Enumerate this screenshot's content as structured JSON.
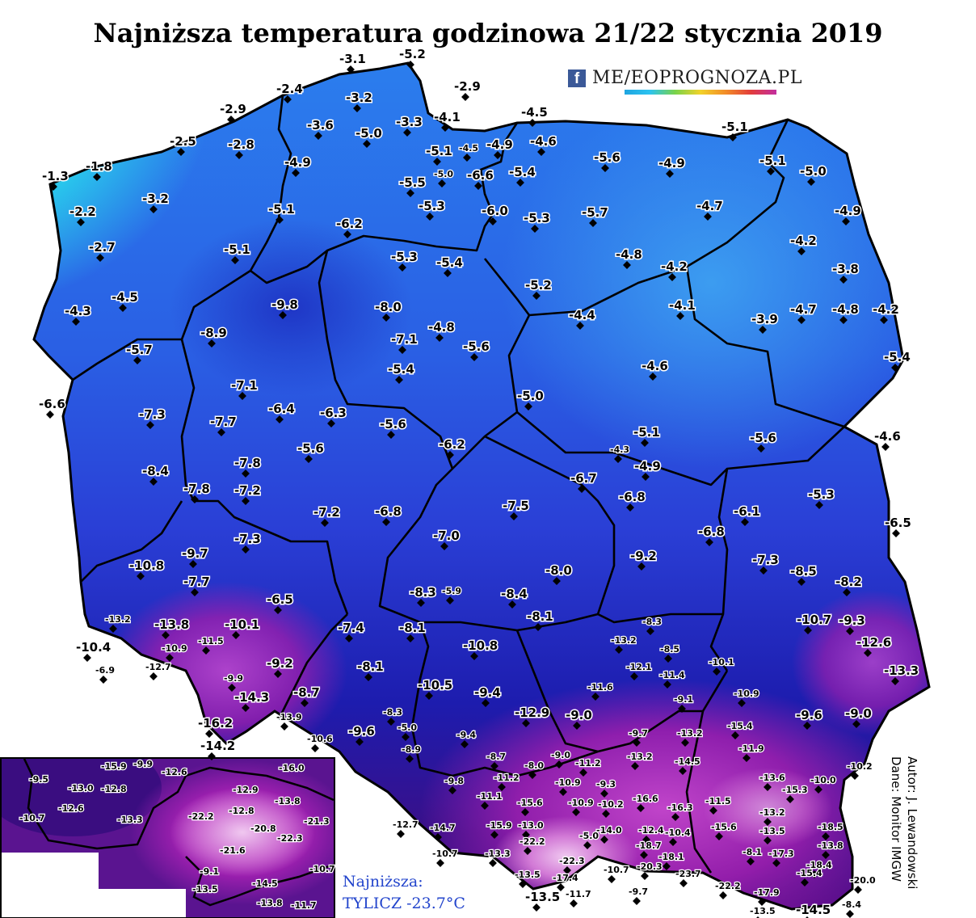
{
  "title": "Najniższa temperatura godzinowa 21/22 stycznia 2019",
  "logo": {
    "icon": "facebook-icon",
    "text": "METEOPROGNOZA.PL",
    "text_display": "ME∕EOPROGNOZA.PL"
  },
  "credits": {
    "author": "Autor: J. Lewandowski",
    "source": "Dane: Monitor IMGW"
  },
  "minimum": {
    "label": "Najniższa:",
    "value": "TYLICZ -23.7°C"
  },
  "colors": {
    "coast_light": "#28e0e0",
    "north_blue": "#1f6be8",
    "central_blue": "#2a3ad8",
    "dark_blue": "#1a1ab0",
    "purple": "#4a0e8a",
    "magenta": "#b020b0",
    "pink": "#d8a0d8"
  },
  "main_labels": [
    [
      "-3.1",
      420,
      78,
      0
    ],
    [
      "-5.2",
      494,
      72,
      0
    ],
    [
      "-2.9",
      562,
      112,
      0
    ],
    [
      "-2.4",
      342,
      115,
      0
    ],
    [
      "-3.2",
      428,
      126,
      0
    ],
    [
      "-2.9",
      272,
      140,
      0
    ],
    [
      "-4.1",
      537,
      150,
      0
    ],
    [
      "-4.5",
      645,
      144,
      0
    ],
    [
      "-3.6",
      380,
      160,
      0
    ],
    [
      "-5.0",
      440,
      170,
      0
    ],
    [
      "-3.3",
      490,
      156,
      0
    ],
    [
      "-5.1",
      893,
      162,
      0
    ],
    [
      "-2.5",
      210,
      180,
      0
    ],
    [
      "-2.8",
      282,
      184,
      0
    ],
    [
      "-4.6",
      656,
      180,
      0
    ],
    [
      "-4.5",
      568,
      187,
      1
    ],
    [
      "-4.9",
      602,
      184,
      0
    ],
    [
      "-5.1",
      527,
      192,
      0
    ],
    [
      "-5.6",
      735,
      200,
      0
    ],
    [
      "-4.9",
      815,
      207,
      0
    ],
    [
      "-5.1",
      940,
      204,
      0
    ],
    [
      "-5.0",
      990,
      217,
      0
    ],
    [
      "-1.3",
      52,
      223,
      0
    ],
    [
      "-1.8",
      106,
      211,
      0
    ],
    [
      "-4.9",
      352,
      206,
      0
    ],
    [
      "-5.0",
      537,
      219,
      1
    ],
    [
      "-6.6",
      578,
      222,
      0
    ],
    [
      "-5.4",
      630,
      218,
      0
    ],
    [
      "-5.5",
      494,
      231,
      0
    ],
    [
      "-3.2",
      176,
      251,
      0
    ],
    [
      "-5.3",
      518,
      260,
      0
    ],
    [
      "-6.0",
      596,
      266,
      0
    ],
    [
      "-5.3",
      648,
      275,
      0
    ],
    [
      "-5.7",
      720,
      268,
      0
    ],
    [
      "-4.7",
      862,
      260,
      0
    ],
    [
      "-4.9",
      1033,
      266,
      0
    ],
    [
      "-2.2",
      86,
      267,
      0
    ],
    [
      "-5.1",
      332,
      264,
      0
    ],
    [
      "-6.2",
      416,
      282,
      0
    ],
    [
      "-4.2",
      978,
      303,
      0
    ],
    [
      "-2.7",
      110,
      311,
      0
    ],
    [
      "-5.1",
      277,
      314,
      0
    ],
    [
      "-5.3",
      484,
      323,
      0
    ],
    [
      "-5.4",
      540,
      330,
      0
    ],
    [
      "-4.8",
      762,
      320,
      0
    ],
    [
      "-4.2",
      818,
      335,
      0
    ],
    [
      "-3.8",
      1030,
      338,
      0
    ],
    [
      "-4.5",
      138,
      373,
      0
    ],
    [
      "-5.2",
      650,
      358,
      0
    ],
    [
      "-9.8",
      336,
      382,
      0
    ],
    [
      "-8.0",
      464,
      385,
      0
    ],
    [
      "-4.1",
      828,
      383,
      0
    ],
    [
      "-3.9",
      930,
      400,
      0
    ],
    [
      "-4.7",
      978,
      388,
      0
    ],
    [
      "-4.8",
      1030,
      388,
      0
    ],
    [
      "-4.2",
      1080,
      388,
      0
    ],
    [
      "-4.3",
      80,
      390,
      0
    ],
    [
      "-4.4",
      704,
      395,
      0
    ],
    [
      "-8.9",
      248,
      417,
      0
    ],
    [
      "-4.8",
      530,
      410,
      0
    ],
    [
      "-7.1",
      484,
      425,
      0
    ],
    [
      "-5.6",
      573,
      434,
      0
    ],
    [
      "-5.7",
      156,
      438,
      0
    ],
    [
      "-5.4",
      1094,
      447,
      0
    ],
    [
      "-4.6",
      794,
      458,
      0
    ],
    [
      "-5.4",
      480,
      462,
      0
    ],
    [
      "-7.1",
      286,
      482,
      0
    ],
    [
      "-5.0",
      640,
      495,
      0
    ],
    [
      "-6.6",
      48,
      505,
      0
    ],
    [
      "-6.4",
      332,
      511,
      0
    ],
    [
      "-6.3",
      396,
      516,
      0
    ],
    [
      "-7.3",
      172,
      518,
      0
    ],
    [
      "-7.7",
      260,
      527,
      0
    ],
    [
      "-5.6",
      470,
      530,
      0
    ],
    [
      "-5.1",
      784,
      540,
      0
    ],
    [
      "-5.6",
      928,
      547,
      0
    ],
    [
      "-4.6",
      1082,
      545,
      0
    ],
    [
      "-6.2",
      543,
      555,
      0
    ],
    [
      "-4.3",
      755,
      560,
      1
    ],
    [
      "-5.6",
      368,
      560,
      0
    ],
    [
      "-7.8",
      290,
      578,
      0
    ],
    [
      "-4.9",
      785,
      582,
      0
    ],
    [
      "-8.4",
      176,
      588,
      0
    ],
    [
      "-6.7",
      706,
      597,
      0
    ],
    [
      "-5.3",
      1000,
      617,
      0
    ],
    [
      "-7.8",
      227,
      610,
      0
    ],
    [
      "-7.2",
      290,
      612,
      0
    ],
    [
      "-6.8",
      766,
      620,
      0
    ],
    [
      "-7.5",
      622,
      631,
      0
    ],
    [
      "-6.1",
      908,
      638,
      0
    ],
    [
      "-7.2",
      388,
      639,
      0
    ],
    [
      "-6.8",
      464,
      638,
      0
    ],
    [
      "-6.5",
      1095,
      652,
      0
    ],
    [
      "-6.8",
      864,
      663,
      0
    ],
    [
      "-7.0",
      536,
      668,
      0
    ],
    [
      "-9.2",
      780,
      693,
      0
    ],
    [
      "-9.7",
      225,
      690,
      0
    ],
    [
      "-7.3",
      290,
      672,
      0
    ],
    [
      "-10.8",
      160,
      705,
      0
    ],
    [
      "-7.3",
      931,
      698,
      0
    ],
    [
      "-8.5",
      978,
      712,
      0
    ],
    [
      "-8.0",
      675,
      711,
      0
    ],
    [
      "-7.7",
      227,
      725,
      0
    ],
    [
      "-8.2",
      1034,
      725,
      0
    ],
    [
      "-8.3",
      507,
      738,
      0
    ],
    [
      "-5.9",
      547,
      735,
      1
    ],
    [
      "-8.4",
      620,
      740,
      0
    ],
    [
      "-6.5",
      330,
      747,
      0
    ],
    [
      "-8.1",
      652,
      768,
      0
    ],
    [
      "-10.7",
      986,
      772,
      0
    ],
    [
      "-9.3",
      1038,
      773,
      0
    ],
    [
      "-13.2",
      130,
      770,
      1
    ],
    [
      "-13.8",
      191,
      778,
      0
    ],
    [
      "-10.1",
      278,
      778,
      0
    ],
    [
      "-7.4",
      418,
      782,
      0
    ],
    [
      "-8.1",
      494,
      782,
      0
    ],
    [
      "-8.3",
      795,
      773,
      1
    ],
    [
      "-10.4",
      94,
      806,
      0
    ],
    [
      "-11.5",
      245,
      797,
      1
    ],
    [
      "-13.2",
      756,
      796,
      1
    ],
    [
      "-8.5",
      817,
      807,
      1
    ],
    [
      "-12.6",
      1060,
      800,
      0
    ],
    [
      "-10.8",
      573,
      804,
      0
    ],
    [
      "-10.9",
      200,
      806,
      1
    ],
    [
      "-12.7",
      180,
      829,
      1
    ],
    [
      "-6.9",
      118,
      833,
      1
    ],
    [
      "-9.2",
      330,
      826,
      0
    ],
    [
      "-8.1",
      442,
      830,
      0
    ],
    [
      "-12.1",
      775,
      829,
      1
    ],
    [
      "-11.4",
      816,
      839,
      1
    ],
    [
      "-10.1",
      877,
      823,
      1
    ],
    [
      "-13.3",
      1094,
      835,
      0
    ],
    [
      "-9.9",
      277,
      843,
      1
    ],
    [
      "-10.5",
      517,
      853,
      0
    ],
    [
      "-11.6",
      727,
      854,
      1
    ],
    [
      "-9.4",
      587,
      862,
      0
    ],
    [
      "-10.9",
      908,
      862,
      1
    ],
    [
      "-14.3",
      290,
      868,
      0
    ],
    [
      "-8.7",
      363,
      862,
      0
    ],
    [
      "-9.1",
      834,
      869,
      1
    ],
    [
      "-12.9",
      637,
      887,
      0
    ],
    [
      "-9.0",
      700,
      890,
      0
    ],
    [
      "-9.6",
      985,
      890,
      0
    ],
    [
      "-9.0",
      1046,
      888,
      0
    ],
    [
      "-8.3",
      474,
      885,
      1
    ],
    [
      "-13.9",
      342,
      891,
      1
    ],
    [
      "-16.2",
      245,
      900,
      0
    ],
    [
      "-15.4",
      900,
      902,
      1
    ],
    [
      "-13.2",
      838,
      911,
      1
    ],
    [
      "-9.7",
      778,
      911,
      1
    ],
    [
      "-5.0",
      492,
      904,
      1
    ],
    [
      "-9.6",
      431,
      910,
      0
    ],
    [
      "-9.4",
      565,
      913,
      1
    ],
    [
      "-10.6",
      380,
      918,
      1
    ],
    [
      "-11.9",
      914,
      930,
      1
    ],
    [
      "-14.2",
      248,
      928,
      0
    ],
    [
      "-8.9",
      497,
      931,
      1
    ],
    [
      "-9.0",
      682,
      938,
      1
    ],
    [
      "-13.2",
      776,
      940,
      1
    ],
    [
      "-14.5",
      835,
      946,
      1
    ],
    [
      "-8.7",
      602,
      940,
      1
    ],
    [
      "-8.0",
      649,
      951,
      1
    ],
    [
      "-11.2",
      712,
      948,
      1
    ],
    [
      "-10.2",
      1048,
      952,
      1
    ],
    [
      "-13.6",
      940,
      966,
      1
    ],
    [
      "-10.0",
      1003,
      969,
      1
    ],
    [
      "-11.2",
      611,
      966,
      1
    ],
    [
      "-10.9",
      687,
      972,
      1
    ],
    [
      "-9.3",
      738,
      974,
      1
    ],
    [
      "-9.8",
      550,
      970,
      1
    ],
    [
      "-15.3",
      968,
      981,
      1
    ],
    [
      "-11.1",
      590,
      989,
      1
    ],
    [
      "-16.6",
      783,
      992,
      1
    ],
    [
      "-11.5",
      873,
      995,
      1
    ],
    [
      "-13.2",
      940,
      1009,
      1
    ],
    [
      "-15.6",
      640,
      997,
      1
    ],
    [
      "-10.9",
      703,
      997,
      1
    ],
    [
      "-10.2",
      740,
      999,
      1
    ],
    [
      "-16.3",
      826,
      1003,
      1
    ],
    [
      "-18.5",
      1012,
      1027,
      1
    ],
    [
      "-12.7",
      486,
      1024,
      1
    ],
    [
      "-14.7",
      532,
      1028,
      1
    ],
    [
      "-15.9",
      602,
      1025,
      1
    ],
    [
      "-13.0",
      641,
      1025,
      1
    ],
    [
      "-14.0",
      738,
      1031,
      1
    ],
    [
      "-12.4",
      790,
      1031,
      1
    ],
    [
      "-10.4",
      823,
      1034,
      1
    ],
    [
      "-15.6",
      880,
      1027,
      1
    ],
    [
      "-13.5",
      940,
      1032,
      1
    ],
    [
      "-5.0",
      717,
      1038,
      1
    ],
    [
      "-22.2",
      643,
      1045,
      1
    ],
    [
      "-18.7",
      787,
      1050,
      1
    ],
    [
      "-13.8",
      1012,
      1050,
      1
    ],
    [
      "-10.7",
      535,
      1060,
      1
    ],
    [
      "-13.3",
      600,
      1060,
      1
    ],
    [
      "-22.3",
      692,
      1069,
      1
    ],
    [
      "-18.1",
      815,
      1064,
      1
    ],
    [
      "-8.1",
      919,
      1058,
      1
    ],
    [
      "-17.3",
      951,
      1060,
      1
    ],
    [
      "-18.4",
      998,
      1074,
      1
    ],
    [
      "-10.7",
      747,
      1080,
      1
    ],
    [
      "-20.3",
      788,
      1076,
      1
    ],
    [
      "-15.4",
      986,
      1084,
      1
    ],
    [
      "-13.5",
      637,
      1086,
      1
    ],
    [
      "-17.4",
      684,
      1090,
      1
    ],
    [
      "-23.7",
      836,
      1085,
      1
    ],
    [
      "-20.0",
      1052,
      1093,
      1
    ],
    [
      "-9.7",
      778,
      1107,
      1
    ],
    [
      "-22.2",
      885,
      1100,
      1
    ],
    [
      "-17.9",
      933,
      1108,
      1
    ],
    [
      "-11.7",
      700,
      1110,
      1
    ],
    [
      "-13.5",
      650,
      1115,
      0
    ],
    [
      "-8.4",
      1042,
      1123,
      1
    ],
    [
      "-13.5",
      928,
      1131,
      1
    ],
    [
      "-14.5",
      985,
      1131,
      0
    ]
  ],
  "inset_labels": [
    [
      "-9.5",
      36,
      968,
      1
    ],
    [
      "-15.9",
      125,
      952,
      1
    ],
    [
      "-9.9",
      165,
      949,
      1
    ],
    [
      "-12.6",
      200,
      959,
      1
    ],
    [
      "-16.0",
      345,
      954,
      1
    ],
    [
      "-13.0",
      84,
      979,
      1
    ],
    [
      "-12.8",
      125,
      980,
      1
    ],
    [
      "-12.9",
      288,
      981,
      1
    ],
    [
      "-13.8",
      340,
      995,
      1
    ],
    [
      "-12.6",
      72,
      1004,
      1
    ],
    [
      "-12.8",
      283,
      1007,
      1
    ],
    [
      "-22.2",
      233,
      1014,
      1
    ],
    [
      "-21.3",
      376,
      1020,
      1
    ],
    [
      "-20.8",
      310,
      1029,
      1
    ],
    [
      "-22.3",
      343,
      1041,
      1
    ],
    [
      "-10.7",
      24,
      1016,
      1
    ],
    [
      "-13.3",
      145,
      1018,
      1
    ],
    [
      "-21.6",
      272,
      1056,
      1
    ],
    [
      "-9.1",
      247,
      1082,
      1
    ],
    [
      "-10.7",
      383,
      1079,
      1
    ],
    [
      "-14.5",
      312,
      1097,
      1
    ],
    [
      "-13.5",
      238,
      1104,
      1
    ],
    [
      "-13.8",
      318,
      1121,
      1
    ],
    [
      "-11.7",
      360,
      1124,
      1
    ]
  ]
}
